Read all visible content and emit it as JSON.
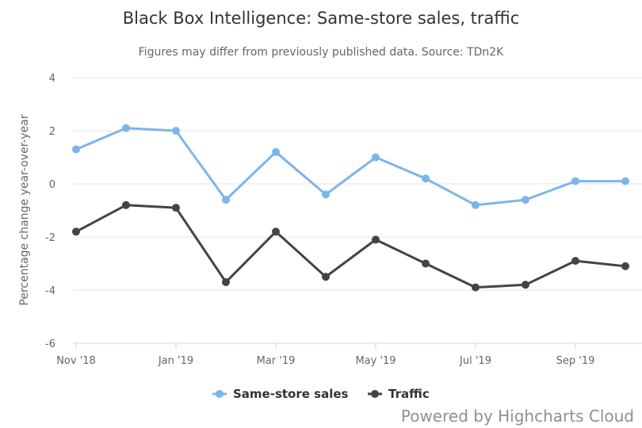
{
  "chart_data": {
    "type": "line",
    "title": "Black Box Intelligence: Same-store sales, traffic",
    "subtitle": "Figures may differ from previously published data. Source: TDn2K",
    "ylabel": "Percentage change year-over-year",
    "xlabel": "",
    "ylim": [
      -6,
      4
    ],
    "yticks": [
      4,
      2,
      0,
      -2,
      -4,
      -6
    ],
    "x": [
      "Nov '18",
      "Dec '18",
      "Jan '19",
      "Feb '19",
      "Mar '19",
      "Apr '19",
      "May '19",
      "Jun '19",
      "Jul '19",
      "Aug '19",
      "Sep '19",
      "Oct '19"
    ],
    "xtick_labels": [
      "Nov '18",
      "Jan '19",
      "Mar '19",
      "May '19",
      "Jul '19",
      "Sep '19"
    ],
    "grid": true,
    "legend_position": "bottom",
    "series": [
      {
        "name": "Same-store sales",
        "color": "#7cb5ec",
        "values": [
          1.3,
          2.1,
          2.0,
          -0.6,
          1.2,
          -0.4,
          1.0,
          0.2,
          -0.8,
          -0.6,
          0.1,
          0.1
        ]
      },
      {
        "name": "Traffic",
        "color": "#434348",
        "values": [
          -1.8,
          -0.8,
          -0.9,
          -3.7,
          -1.8,
          -3.5,
          -2.1,
          -3.0,
          -3.9,
          -3.8,
          -2.9,
          -3.1
        ]
      }
    ]
  },
  "credits": "Powered by Highcharts Cloud"
}
